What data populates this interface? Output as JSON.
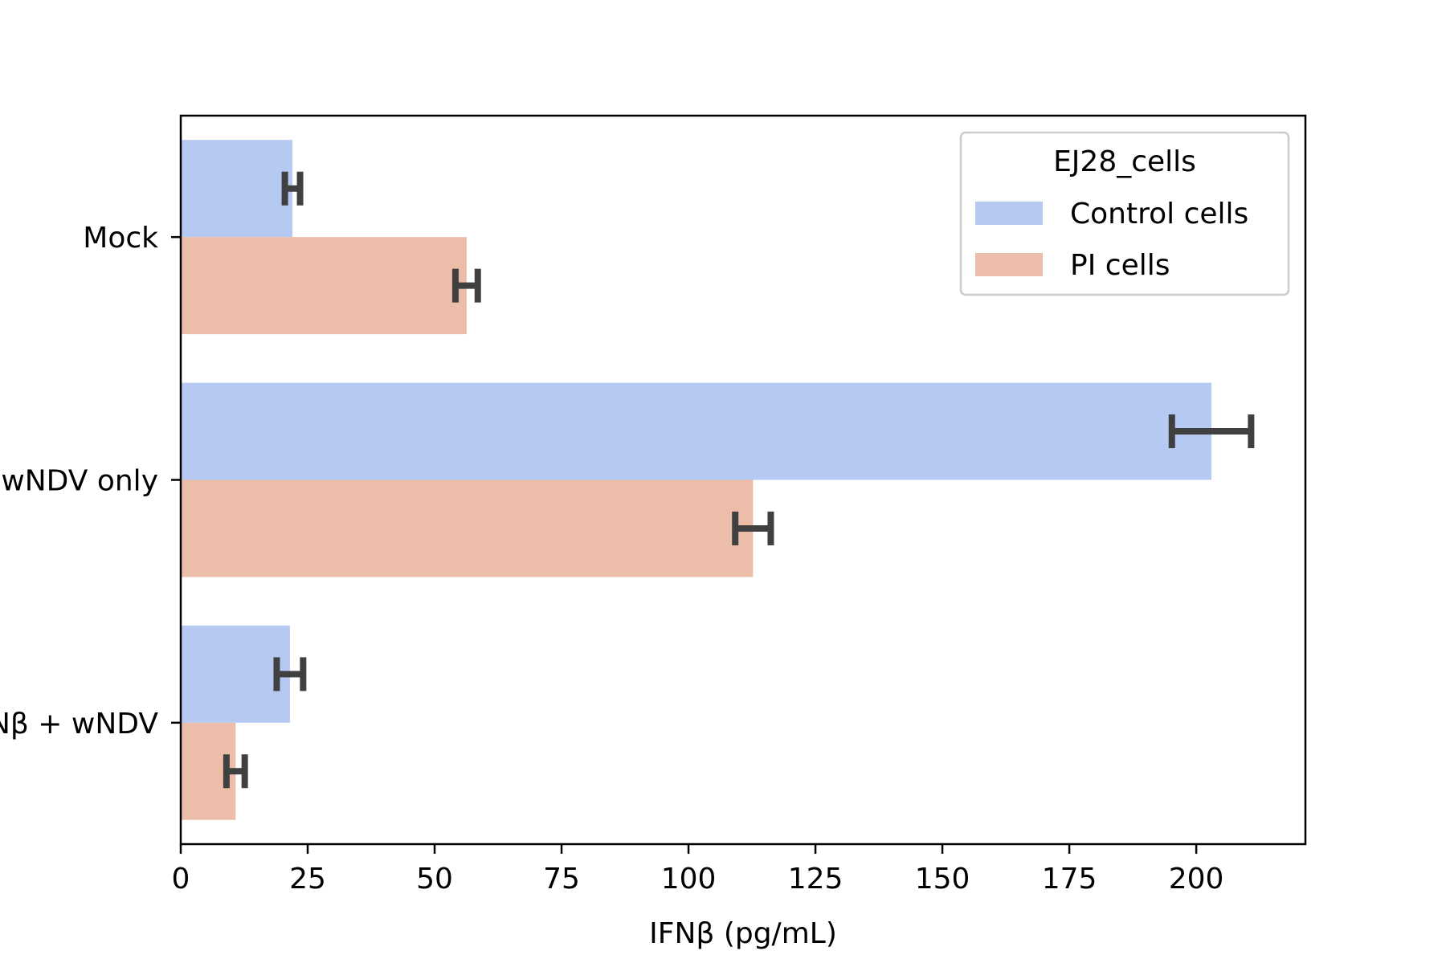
{
  "chart_data": {
    "type": "bar",
    "orientation": "horizontal",
    "title": "",
    "xlabel": "IFNβ (pg/mL)",
    "ylabel": "",
    "xlim": [
      0,
      221.5
    ],
    "xticks": [
      0,
      25,
      50,
      75,
      100,
      125,
      150,
      175,
      200
    ],
    "grid": false,
    "categories": [
      "Mock",
      "wNDV only",
      "IFNβ + wNDV"
    ],
    "series": [
      {
        "name": "Control cells",
        "color": "#b5c9f2",
        "values": [
          22,
          203,
          21.5
        ],
        "errors": [
          1.5,
          7.8,
          2.6
        ]
      },
      {
        "name": "PI cells",
        "color": "#ecbda8",
        "values": [
          56.3,
          112.7,
          10.8
        ],
        "errors": [
          2.2,
          3.5,
          1.8
        ]
      }
    ],
    "legend": {
      "title": "EJ28_cells",
      "position": "top-right"
    },
    "error_bar_color": "#404040"
  }
}
